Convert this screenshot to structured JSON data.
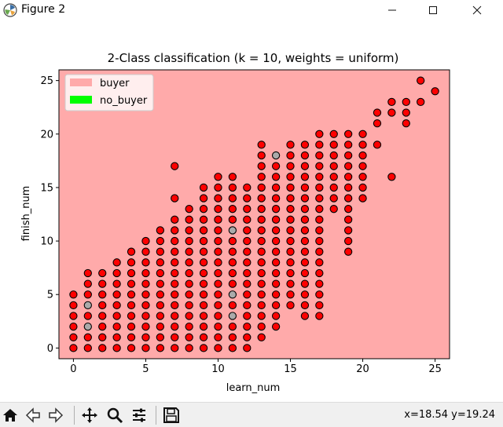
{
  "window": {
    "title": "Figure 2"
  },
  "toolbar": {
    "buttons": [
      "home-icon",
      "back-icon",
      "forward-icon",
      "pan-icon",
      "zoom-icon",
      "configure-icon",
      "save-icon"
    ],
    "coordinates": "x=18.54 y=19.24"
  },
  "colors": {
    "background_region": "#ffaaaa",
    "buyer_point": "#ff0000",
    "no_buyer_point": "#00ff00",
    "mixed_point": "#aaaaaa"
  },
  "chart_data": {
    "type": "scatter",
    "title": "2-Class classification (k = 10, weights = uniform)",
    "xlabel": "learn_num",
    "ylabel": "finish_num",
    "xlim": [
      -1,
      26
    ],
    "ylim": [
      -1,
      26
    ],
    "xticks": [
      0,
      5,
      10,
      15,
      20,
      25
    ],
    "yticks": [
      0,
      5,
      10,
      15,
      20,
      25
    ],
    "legend": {
      "placement": "top-left",
      "entries": [
        {
          "label": "buyer",
          "color": "#ffaaaa"
        },
        {
          "label": "no_buyer",
          "color": "#00ff00"
        }
      ]
    },
    "decision_region": {
      "class": "buyer",
      "covers": "entire plot"
    },
    "gray_points": [
      [
        1,
        4
      ],
      [
        1,
        2
      ],
      [
        11,
        11
      ],
      [
        11,
        5
      ],
      [
        11,
        3
      ],
      [
        14,
        18
      ]
    ],
    "series": [
      {
        "name": "buyer",
        "column_ranges": [
          [
            0,
            0,
            5
          ],
          [
            1,
            0,
            7
          ],
          [
            2,
            0,
            7
          ],
          [
            3,
            0,
            8
          ],
          [
            4,
            0,
            9
          ],
          [
            5,
            0,
            10
          ],
          [
            6,
            0,
            11
          ],
          [
            7,
            0,
            12
          ],
          [
            8,
            0,
            13
          ],
          [
            9,
            0,
            15
          ],
          [
            10,
            0,
            16
          ],
          [
            11,
            0,
            16
          ],
          [
            12,
            0,
            15
          ],
          [
            13,
            1,
            19
          ],
          [
            14,
            2,
            18
          ],
          [
            15,
            4,
            19
          ],
          [
            16,
            3,
            19
          ],
          [
            17,
            3,
            20
          ],
          [
            18,
            13,
            20
          ],
          [
            19,
            9,
            20
          ],
          [
            20,
            14,
            20
          ]
        ],
        "extra_points": [
          [
            7,
            17
          ],
          [
            7,
            14
          ],
          [
            16,
            3
          ],
          [
            17,
            7
          ],
          [
            17,
            9
          ],
          [
            19,
            9
          ],
          [
            21,
            19
          ],
          [
            21,
            21
          ],
          [
            21,
            22
          ],
          [
            22,
            16
          ],
          [
            22,
            22
          ],
          [
            22,
            23
          ],
          [
            23,
            21
          ],
          [
            23,
            22
          ],
          [
            23,
            23
          ],
          [
            24,
            23
          ],
          [
            24,
            25
          ],
          [
            25,
            24
          ]
        ]
      }
    ]
  }
}
